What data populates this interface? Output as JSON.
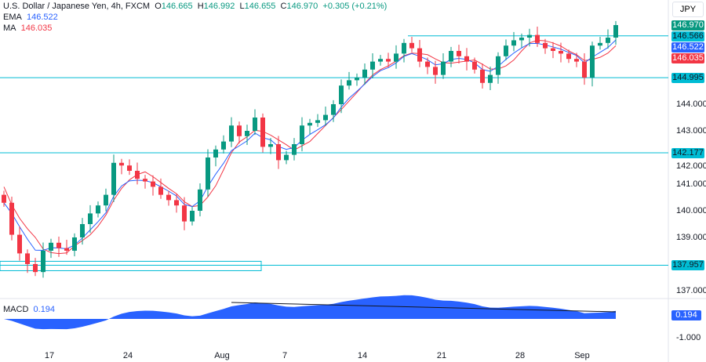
{
  "header": {
    "symbol": "U.S. Dollar / Japanese Yen, 4h, FXCM",
    "o_label": "O",
    "o": "146.665",
    "h_label": "H",
    "h": "146.992",
    "l_label": "L",
    "l": "146.655",
    "c_label": "C",
    "c": "146.970",
    "change": "+0.305 (+0.21%)",
    "ema_label": "EMA",
    "ema": "146.522",
    "ma_label": "MA",
    "ma": "146.035",
    "currency": "JPY"
  },
  "price_tags": {
    "last": "146.970",
    "resistance": "146.566",
    "ema": "146.522",
    "ma": "146.035",
    "level1": "144.995",
    "level2": "142.177",
    "level3": "137.957"
  },
  "macd": {
    "label": "MACD",
    "value": "0.194",
    "tags": {
      "value": "0.194",
      "minus1": "-1.000"
    }
  },
  "colors": {
    "up": "#089981",
    "down": "#f23645",
    "ema": "#2962ff",
    "ma": "#f23645",
    "level": "#00bcd4",
    "macd": "#2962ff"
  },
  "chart_data": {
    "type": "candlestick",
    "title": "U.S. Dollar / Japanese Yen, 4h, FXCM",
    "x_ticks": [
      "17",
      "24",
      "Aug",
      "7",
      "14",
      "21",
      "28",
      "Sep"
    ],
    "y_ticks": [
      "144.000",
      "143.000",
      "142.000",
      "141.000",
      "140.000",
      "139.000",
      "137.000"
    ],
    "levels": [
      146.566,
      144.995,
      142.177,
      137.957
    ],
    "closes": [
      140.3,
      139.1,
      138.4,
      138.0,
      137.7,
      138.5,
      138.8,
      138.6,
      138.5,
      139.0,
      139.5,
      139.9,
      140.2,
      140.6,
      141.8,
      141.7,
      141.5,
      141.2,
      141.1,
      140.9,
      140.6,
      140.4,
      140.2,
      139.6,
      140.0,
      140.8,
      142.0,
      142.3,
      142.6,
      143.2,
      142.8,
      143.0,
      143.5,
      142.4,
      142.5,
      141.9,
      142.1,
      142.5,
      143.2,
      143.3,
      143.4,
      143.6,
      144.0,
      144.7,
      144.9,
      145.0,
      145.3,
      145.6,
      145.7,
      145.6,
      145.9,
      146.3,
      146.1,
      145.6,
      145.4,
      145.1,
      145.6,
      146.0,
      145.8,
      145.6,
      145.3,
      144.8,
      145.1,
      145.8,
      146.2,
      146.4,
      146.5,
      146.6,
      146.3,
      146.1,
      146.0,
      145.9,
      145.7,
      145.6,
      145.0,
      146.2,
      146.3,
      146.5,
      146.97
    ]
  }
}
